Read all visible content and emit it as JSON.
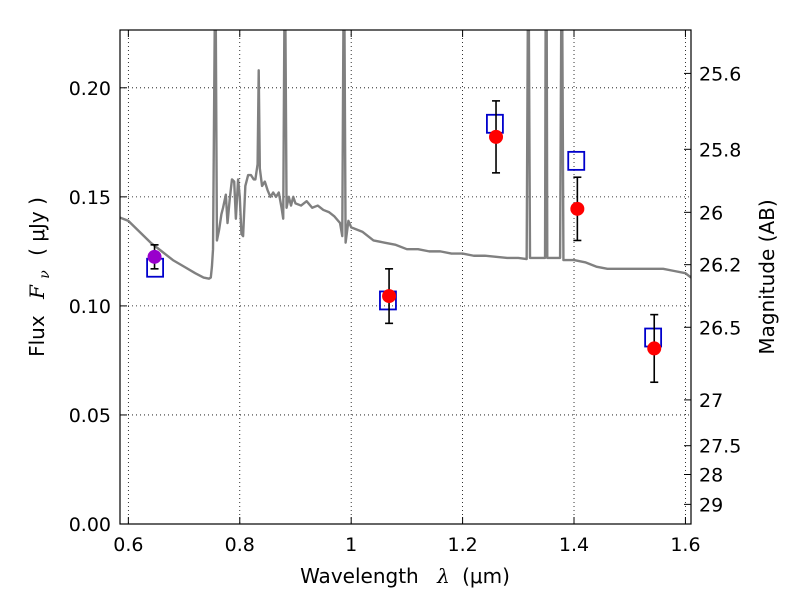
{
  "chart_data": {
    "type": "scatter",
    "xlabel": "Wavelength",
    "xlabel_symbol": "λ",
    "xlabel_unit": "(μm)",
    "ylabel": "Flux",
    "ylabel_symbol": "F",
    "ylabel_subscript": "ν",
    "ylabel_unit": "( μJy )",
    "y2label": "Magnitude (AB)",
    "xlim": [
      0.585,
      1.61
    ],
    "ylim": [
      0.0,
      0.2265
    ],
    "grid": true,
    "x_ticks": [
      {
        "value": 0.6,
        "label": "0.6"
      },
      {
        "value": 0.8,
        "label": "0.8"
      },
      {
        "value": 1.0,
        "label": "1"
      },
      {
        "value": 1.2,
        "label": "1.2"
      },
      {
        "value": 1.4,
        "label": "1.4"
      },
      {
        "value": 1.6,
        "label": "1.6"
      }
    ],
    "y_ticks": [
      {
        "value": 0.0,
        "label": "0.00"
      },
      {
        "value": 0.05,
        "label": "0.05"
      },
      {
        "value": 0.1,
        "label": "0.10"
      },
      {
        "value": 0.15,
        "label": "0.15"
      },
      {
        "value": 0.2,
        "label": "0.20"
      }
    ],
    "y2_ticks": [
      {
        "label": "25.6",
        "flux": 0.2066
      },
      {
        "label": "25.8",
        "flux": 0.1718
      },
      {
        "label": "26",
        "flux": 0.1429
      },
      {
        "label": "26.2",
        "flux": 0.1189
      },
      {
        "label": "26.5",
        "flux": 0.0902
      },
      {
        "label": "27",
        "flux": 0.0569
      },
      {
        "label": "27.5",
        "flux": 0.0359
      },
      {
        "label": "28",
        "flux": 0.0227
      },
      {
        "label": "29",
        "flux": 0.009
      }
    ],
    "series": [
      {
        "type": "line",
        "color": "#808080",
        "points": [
          [
            0.585,
            0.1405
          ],
          [
            0.6,
            0.139
          ],
          [
            0.62,
            0.134
          ],
          [
            0.64,
            0.129
          ],
          [
            0.66,
            0.125
          ],
          [
            0.68,
            0.121
          ],
          [
            0.7,
            0.118
          ],
          [
            0.72,
            0.115
          ],
          [
            0.735,
            0.113
          ],
          [
            0.745,
            0.1125
          ],
          [
            0.748,
            0.113
          ],
          [
            0.75,
            0.118
          ],
          [
            0.752,
            0.126
          ],
          [
            0.755,
            0.2265
          ],
          [
            0.757,
            0.2265
          ],
          [
            0.759,
            0.13
          ],
          [
            0.763,
            0.135
          ],
          [
            0.767,
            0.142
          ],
          [
            0.77,
            0.145
          ],
          [
            0.775,
            0.151
          ],
          [
            0.778,
            0.138
          ],
          [
            0.782,
            0.149
          ],
          [
            0.786,
            0.158
          ],
          [
            0.79,
            0.157
          ],
          [
            0.793,
            0.14
          ],
          [
            0.797,
            0.158
          ],
          [
            0.8,
            0.15
          ],
          [
            0.803,
            0.133
          ],
          [
            0.806,
            0.132
          ],
          [
            0.81,
            0.155
          ],
          [
            0.815,
            0.16
          ],
          [
            0.82,
            0.16
          ],
          [
            0.825,
            0.158
          ],
          [
            0.828,
            0.158
          ],
          [
            0.832,
            0.165
          ],
          [
            0.834,
            0.208
          ],
          [
            0.836,
            0.163
          ],
          [
            0.84,
            0.155
          ],
          [
            0.845,
            0.157
          ],
          [
            0.85,
            0.153
          ],
          [
            0.855,
            0.15
          ],
          [
            0.86,
            0.152
          ],
          [
            0.865,
            0.15
          ],
          [
            0.87,
            0.152
          ],
          [
            0.875,
            0.145
          ],
          [
            0.878,
            0.14
          ],
          [
            0.88,
            0.2265
          ],
          [
            0.882,
            0.2265
          ],
          [
            0.884,
            0.145
          ],
          [
            0.888,
            0.15
          ],
          [
            0.892,
            0.146
          ],
          [
            0.896,
            0.15
          ],
          [
            0.9,
            0.147
          ],
          [
            0.91,
            0.146
          ],
          [
            0.92,
            0.148
          ],
          [
            0.93,
            0.145
          ],
          [
            0.94,
            0.146
          ],
          [
            0.95,
            0.144
          ],
          [
            0.96,
            0.143
          ],
          [
            0.97,
            0.141
          ],
          [
            0.98,
            0.138
          ],
          [
            0.984,
            0.132
          ],
          [
            0.986,
            0.2265
          ],
          [
            0.988,
            0.2265
          ],
          [
            0.99,
            0.129
          ],
          [
            0.995,
            0.139
          ],
          [
            1.0,
            0.136
          ],
          [
            1.02,
            0.134
          ],
          [
            1.04,
            0.13
          ],
          [
            1.06,
            0.129
          ],
          [
            1.08,
            0.128
          ],
          [
            1.1,
            0.126
          ],
          [
            1.12,
            0.126
          ],
          [
            1.14,
            0.125
          ],
          [
            1.16,
            0.125
          ],
          [
            1.18,
            0.124
          ],
          [
            1.2,
            0.124
          ],
          [
            1.22,
            0.123
          ],
          [
            1.24,
            0.123
          ],
          [
            1.26,
            0.1225
          ],
          [
            1.28,
            0.122
          ],
          [
            1.3,
            0.122
          ],
          [
            1.315,
            0.1215
          ],
          [
            1.317,
            0.2265
          ],
          [
            1.319,
            0.2265
          ],
          [
            1.321,
            0.122
          ],
          [
            1.34,
            0.122
          ],
          [
            1.348,
            0.122
          ],
          [
            1.349,
            0.2265
          ],
          [
            1.351,
            0.2265
          ],
          [
            1.352,
            0.122
          ],
          [
            1.36,
            0.122
          ],
          [
            1.375,
            0.122
          ],
          [
            1.377,
            0.2265
          ],
          [
            1.379,
            0.2265
          ],
          [
            1.381,
            0.121
          ],
          [
            1.4,
            0.121
          ],
          [
            1.42,
            0.12
          ],
          [
            1.44,
            0.118
          ],
          [
            1.46,
            0.117
          ],
          [
            1.48,
            0.117
          ],
          [
            1.5,
            0.117
          ],
          [
            1.52,
            0.117
          ],
          [
            1.54,
            0.117
          ],
          [
            1.56,
            0.117
          ],
          [
            1.58,
            0.116
          ],
          [
            1.6,
            0.115
          ],
          [
            1.61,
            0.113
          ]
        ]
      },
      {
        "type": "squares",
        "color": "#0000cc",
        "points": [
          [
            0.648,
            0.1175
          ],
          [
            1.066,
            0.1025
          ],
          [
            1.258,
            0.1835
          ],
          [
            1.404,
            0.1665
          ],
          [
            1.542,
            0.0855
          ]
        ]
      },
      {
        "type": "errorbar_points",
        "points": [
          {
            "x": 0.647,
            "y": 0.1225,
            "err": 0.0055,
            "color": "#9900cc"
          },
          {
            "x": 1.068,
            "y": 0.1045,
            "err": 0.0125,
            "color": "#ff0000"
          },
          {
            "x": 1.26,
            "y": 0.1775,
            "err": 0.0165,
            "color": "#ff0000"
          },
          {
            "x": 1.406,
            "y": 0.1445,
            "err": 0.0145,
            "color": "#ff0000"
          },
          {
            "x": 1.544,
            "y": 0.0805,
            "err": 0.0155,
            "color": "#ff0000"
          }
        ]
      }
    ]
  }
}
